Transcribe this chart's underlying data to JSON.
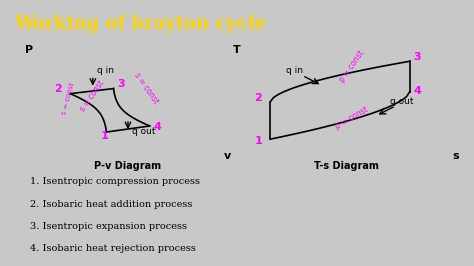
{
  "title": "Working of brayton cycle",
  "title_color": "#FFD700",
  "title_bg": "#1a1a1a",
  "bg_color": "#c8c8c8",
  "diagram_bg": "#d8d8d8",
  "text_color": "#000000",
  "magenta": "#FF00FF",
  "pv_label": "P-v Diagram",
  "ts_label": "T-s Diagram",
  "pv_xlabel": "v",
  "pv_ylabel": "P",
  "ts_xlabel": "s",
  "ts_ylabel": "T",
  "legend_items": [
    "1. Isentropic compression process",
    "2. Isobaric heat addition process",
    "3. Isentropic expansion process",
    "4. Isobaric heat rejection process"
  ],
  "pv_points": {
    "1": [
      0.38,
      0.22
    ],
    "2": [
      0.18,
      0.6
    ],
    "3": [
      0.42,
      0.65
    ],
    "4": [
      0.62,
      0.28
    ]
  },
  "ts_points": {
    "1": [
      0.12,
      0.15
    ],
    "2": [
      0.12,
      0.52
    ],
    "3": [
      0.82,
      0.92
    ],
    "4": [
      0.82,
      0.62
    ]
  }
}
